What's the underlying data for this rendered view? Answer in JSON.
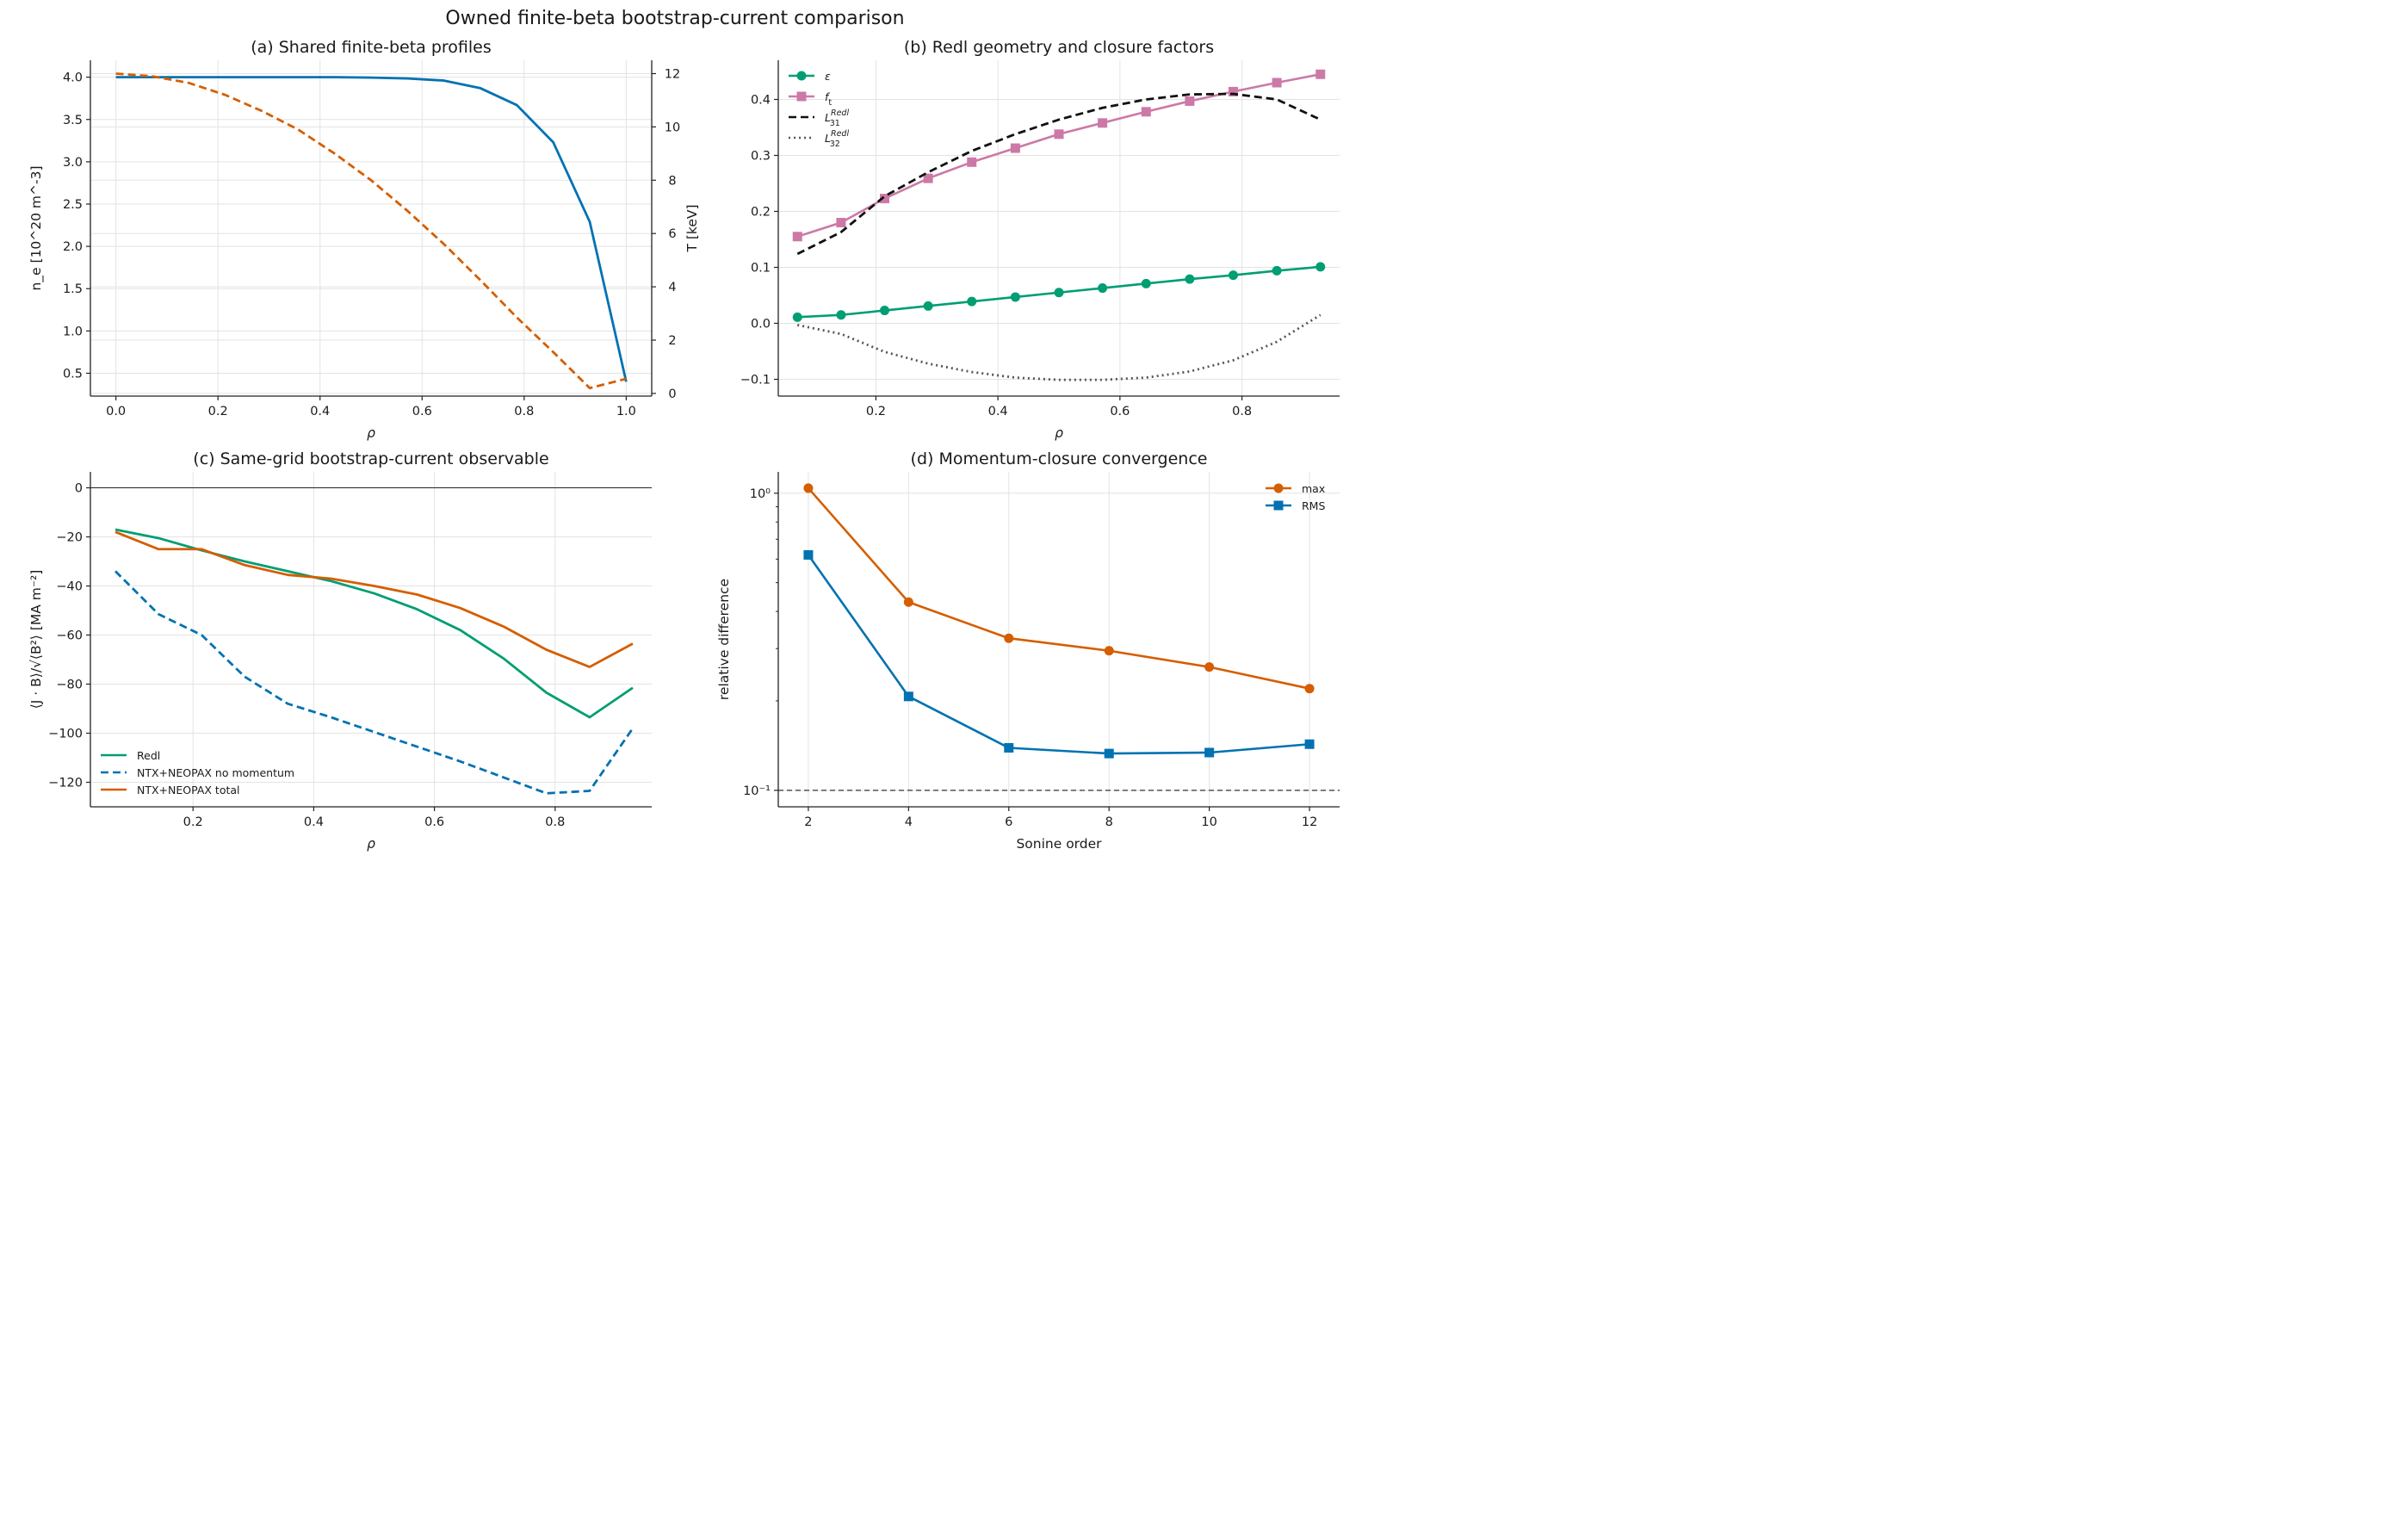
{
  "suptitle": "Owned finite-beta bootstrap-current comparison",
  "colors": {
    "blue": "#0072b2",
    "orange": "#d55e00",
    "green": "#009e73",
    "pink": "#cc79a7",
    "black": "#111111",
    "gray": "#555555"
  },
  "chart_data": [
    {
      "id": "a",
      "type": "line",
      "title": "(a) Shared finite-beta profiles",
      "xlabel": "ρ",
      "ylabel": "n_e [10^20 m^-3]",
      "y2label": "T [keV]",
      "xlim": [
        -0.05,
        1.05
      ],
      "ylim": [
        0.23,
        4.2
      ],
      "y2lim": [
        -0.1,
        12.5
      ],
      "xticks": [
        "0.0",
        "0.2",
        "0.4",
        "0.6",
        "0.8",
        "1.0"
      ],
      "yticks": [
        "0.5",
        "1.0",
        "1.5",
        "2.0",
        "2.5",
        "3.0",
        "3.5",
        "4.0"
      ],
      "y2ticks": [
        "0",
        "2",
        "4",
        "6",
        "8",
        "10",
        "12"
      ],
      "series": [
        {
          "axis": "left",
          "style": "solid",
          "color": "blue",
          "x": [
            0.0,
            0.0714,
            0.1429,
            0.2143,
            0.2857,
            0.3571,
            0.4286,
            0.5,
            0.5714,
            0.6429,
            0.7143,
            0.7857,
            0.8571,
            0.9286,
            1.0
          ],
          "y": [
            4.0,
            4.0,
            4.0,
            4.0,
            4.0,
            4.0,
            4.0,
            3.995,
            3.985,
            3.96,
            3.87,
            3.67,
            3.23,
            2.29,
            0.4
          ]
        },
        {
          "axis": "right",
          "style": "dashed",
          "color": "orange",
          "x": [
            0.0,
            0.0714,
            0.1429,
            0.2143,
            0.2857,
            0.3571,
            0.4286,
            0.5,
            0.5714,
            0.6429,
            0.7143,
            0.7857,
            0.8571,
            0.9286,
            1.0
          ],
          "y": [
            12.0,
            11.9,
            11.65,
            11.2,
            10.6,
            9.9,
            9.0,
            8.0,
            6.85,
            5.6,
            4.25,
            2.85,
            1.55,
            0.2,
            0.55
          ]
        }
      ]
    },
    {
      "id": "b",
      "type": "line",
      "title": "(b) Redl geometry and closure factors",
      "xlabel": "ρ",
      "xlim": [
        0.04,
        0.96
      ],
      "ylim": [
        -0.13,
        0.47
      ],
      "xticks": [
        "0.2",
        "0.4",
        "0.6",
        "0.8"
      ],
      "yticks": [
        "−0.1",
        "0.0",
        "0.1",
        "0.2",
        "0.3",
        "0.4"
      ],
      "legend_position": "upper-left",
      "series": [
        {
          "name": "ε",
          "style": "solid",
          "marker": "circle",
          "color": "green",
          "x": [
            0.0714,
            0.1429,
            0.2143,
            0.2857,
            0.3571,
            0.4286,
            0.5,
            0.5714,
            0.6429,
            0.7143,
            0.7857,
            0.8571,
            0.9286
          ],
          "y": [
            0.011,
            0.015,
            0.023,
            0.031,
            0.039,
            0.047,
            0.055,
            0.063,
            0.071,
            0.079,
            0.086,
            0.094,
            0.101
          ]
        },
        {
          "name": "f_t",
          "style": "solid",
          "marker": "square",
          "color": "pink",
          "x": [
            0.0714,
            0.1429,
            0.2143,
            0.2857,
            0.3571,
            0.4286,
            0.5,
            0.5714,
            0.6429,
            0.7143,
            0.7857,
            0.8571,
            0.9286
          ],
          "y": [
            0.155,
            0.18,
            0.223,
            0.259,
            0.288,
            0.313,
            0.338,
            0.358,
            0.378,
            0.397,
            0.414,
            0.43,
            0.445
          ]
        },
        {
          "name": "L_31^Redl",
          "style": "dashed",
          "color": "black",
          "x": [
            0.0714,
            0.1429,
            0.2143,
            0.2857,
            0.3571,
            0.4286,
            0.5,
            0.5714,
            0.6429,
            0.7143,
            0.7857,
            0.8571,
            0.9286
          ],
          "y": [
            0.124,
            0.163,
            0.227,
            0.27,
            0.308,
            0.338,
            0.364,
            0.385,
            0.4,
            0.409,
            0.41,
            0.4,
            0.364
          ]
        },
        {
          "name": "L_32^Redl",
          "style": "dotted",
          "color": "gray",
          "x": [
            0.0714,
            0.1429,
            0.2143,
            0.2857,
            0.3571,
            0.4286,
            0.5,
            0.5714,
            0.6429,
            0.7143,
            0.7857,
            0.8571,
            0.9286
          ],
          "y": [
            -0.003,
            -0.019,
            -0.051,
            -0.072,
            -0.087,
            -0.097,
            -0.101,
            -0.101,
            -0.097,
            -0.086,
            -0.066,
            -0.033,
            0.015
          ]
        }
      ]
    },
    {
      "id": "c",
      "type": "line",
      "title": "(c) Same-grid bootstrap-current observable",
      "xlabel": "ρ",
      "ylabel": "⟨J · B⟩/√⟨B²⟩ [MA m⁻²]",
      "xlim": [
        0.03,
        0.96
      ],
      "ylim": [
        -130,
        6.5
      ],
      "xticks": [
        "0.2",
        "0.4",
        "0.6",
        "0.8"
      ],
      "yticks": [
        "−120",
        "−100",
        "−80",
        "−60",
        "−40",
        "−20",
        "0"
      ],
      "zero_line": 0,
      "legend_position": "lower-left",
      "series": [
        {
          "name": "Redl",
          "style": "solid",
          "color": "green",
          "x": [
            0.0714,
            0.1429,
            0.2143,
            0.2857,
            0.3571,
            0.4286,
            0.5,
            0.5714,
            0.6429,
            0.7143,
            0.7857,
            0.8571,
            0.9286
          ],
          "y": [
            -17.0,
            -20.5,
            -25.5,
            -30.0,
            -34.0,
            -38.0,
            -43.0,
            -49.5,
            -58.0,
            -69.5,
            -83.5,
            -93.5,
            -81.5
          ]
        },
        {
          "name": "NTX+NEOPAX no momentum",
          "style": "dashed",
          "color": "blue",
          "x": [
            0.0714,
            0.1429,
            0.2143,
            0.2857,
            0.3571,
            0.4286,
            0.5,
            0.5714,
            0.6429,
            0.7143,
            0.7857,
            0.8571,
            0.9286
          ],
          "y": [
            -34.0,
            -51.5,
            -60.0,
            -77.0,
            -88.0,
            -93.5,
            -99.5,
            -105.5,
            -111.5,
            -118.0,
            -124.5,
            -123.5,
            -98.0
          ]
        },
        {
          "name": "NTX+NEOPAX total",
          "style": "solid",
          "color": "orange",
          "x": [
            0.0714,
            0.1429,
            0.2143,
            0.2857,
            0.3571,
            0.4286,
            0.5,
            0.5714,
            0.6429,
            0.7143,
            0.7857,
            0.8571,
            0.9286
          ],
          "y": [
            -18.0,
            -25.0,
            -25.0,
            -31.5,
            -35.5,
            -37.0,
            -40.0,
            -43.5,
            -49.0,
            -56.5,
            -66.0,
            -73.0,
            -63.5
          ]
        }
      ]
    },
    {
      "id": "d",
      "type": "line",
      "title": "(d) Momentum-closure convergence",
      "xlabel": "Sonine order",
      "ylabel": "relative difference",
      "xlim": [
        1.4,
        12.6
      ],
      "ylim": [
        0.088,
        1.18
      ],
      "yscale": "log",
      "xticks": [
        "2",
        "4",
        "6",
        "8",
        "10",
        "12"
      ],
      "yticks": [
        "10⁻¹",
        "10⁰"
      ],
      "reference_line": 0.1,
      "legend_position": "upper-right",
      "series": [
        {
          "name": "max",
          "style": "solid",
          "marker": "circle",
          "color": "orange",
          "x": [
            2,
            4,
            6,
            8,
            10,
            12
          ],
          "y": [
            1.04,
            0.43,
            0.325,
            0.295,
            0.26,
            0.22
          ]
        },
        {
          "name": "RMS",
          "style": "solid",
          "marker": "square",
          "color": "blue",
          "x": [
            2,
            4,
            6,
            8,
            10,
            12
          ],
          "y": [
            0.62,
            0.207,
            0.139,
            0.133,
            0.134,
            0.143
          ]
        }
      ]
    }
  ]
}
